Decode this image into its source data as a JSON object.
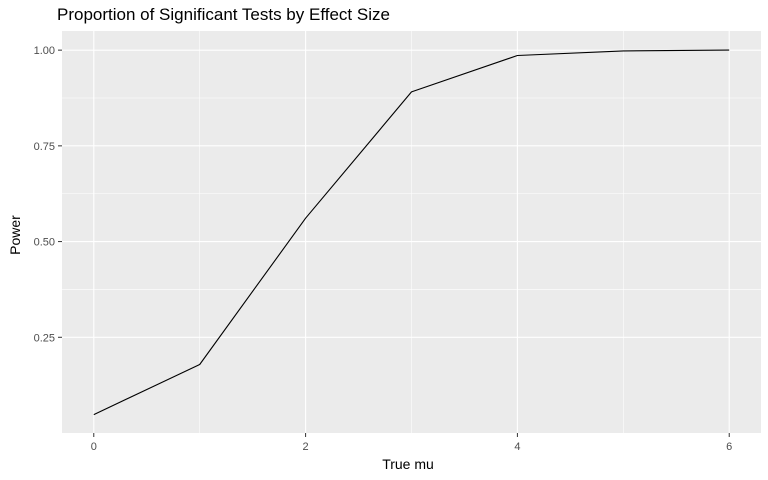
{
  "chart_data": {
    "type": "line",
    "title": "Proportion of Significant Tests by Effect Size",
    "xlabel": "True mu",
    "ylabel": "Power",
    "x": [
      0,
      1,
      2,
      3,
      4,
      5,
      6
    ],
    "y": [
      0.048,
      0.179,
      0.561,
      0.891,
      0.986,
      0.998,
      1.0
    ],
    "xlim": [
      -0.3,
      6.3
    ],
    "ylim": [
      0.0,
      1.05
    ],
    "x_ticks": [
      0,
      2,
      4,
      6
    ],
    "x_tick_labels": [
      "0",
      "2",
      "4",
      "6"
    ],
    "y_ticks": [
      0.25,
      0.5,
      0.75,
      1.0
    ],
    "y_tick_labels": [
      "0.25",
      "0.50",
      "0.75",
      "1.00"
    ],
    "grid": true,
    "line_color": "#000000",
    "panel_background": "#ebebeb",
    "grid_color": "#ffffff"
  }
}
